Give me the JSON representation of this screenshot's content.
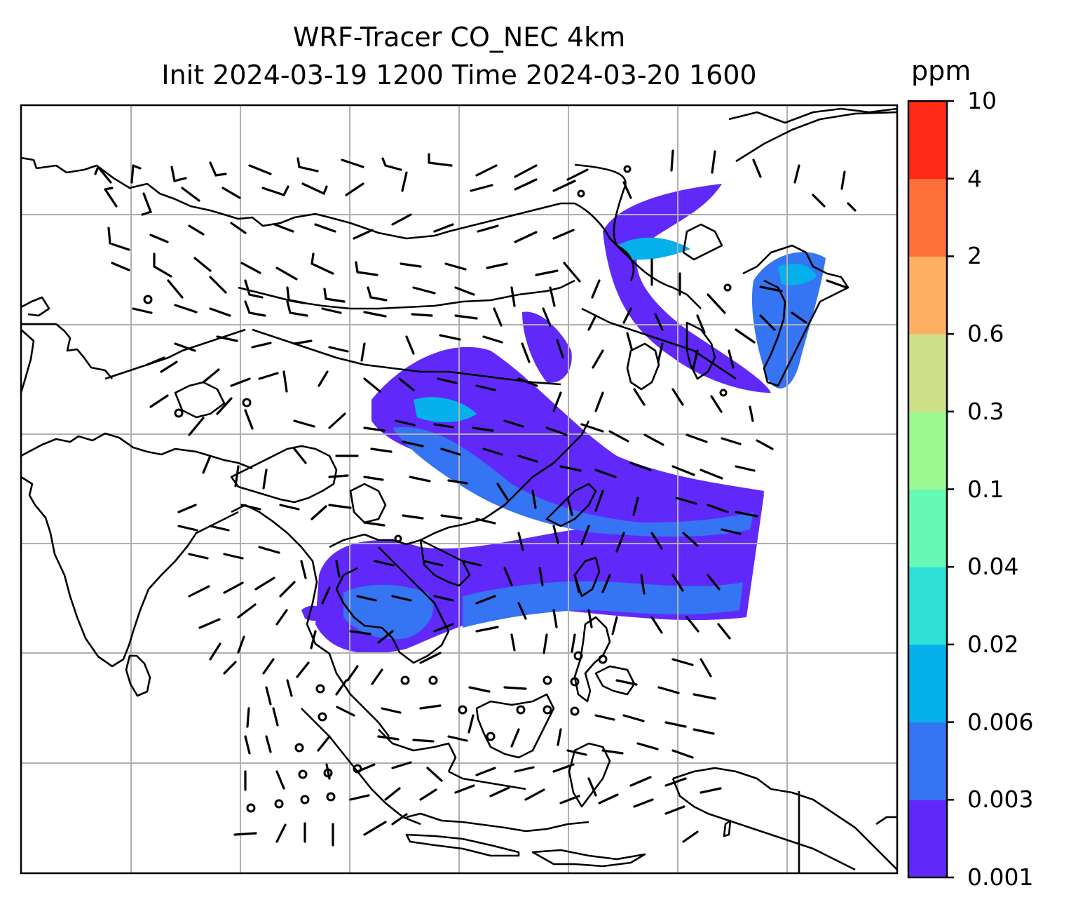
{
  "title": {
    "line1": "WRF-Tracer CO_NEC 4km",
    "line2": "Init 2024-03-19 1200 Time 2024-03-20 1600"
  },
  "colorbar": {
    "unit": "ppm",
    "levels": [
      "0.001",
      "0.003",
      "0.006",
      "0.02",
      "0.04",
      "0.1",
      "0.3",
      "0.6",
      "2",
      "4",
      "10"
    ],
    "colors": [
      "#6029fa",
      "#3574f2",
      "#05b0eb",
      "#2ee0d5",
      "#66f9b5",
      "#9bf991",
      "#cde087",
      "#feb062",
      "#ff7139",
      "#ff2b16"
    ]
  },
  "map": {
    "grid": true,
    "features": [
      "coastlines",
      "country-borders",
      "wind-barbs",
      "tracer-concentration"
    ]
  }
}
